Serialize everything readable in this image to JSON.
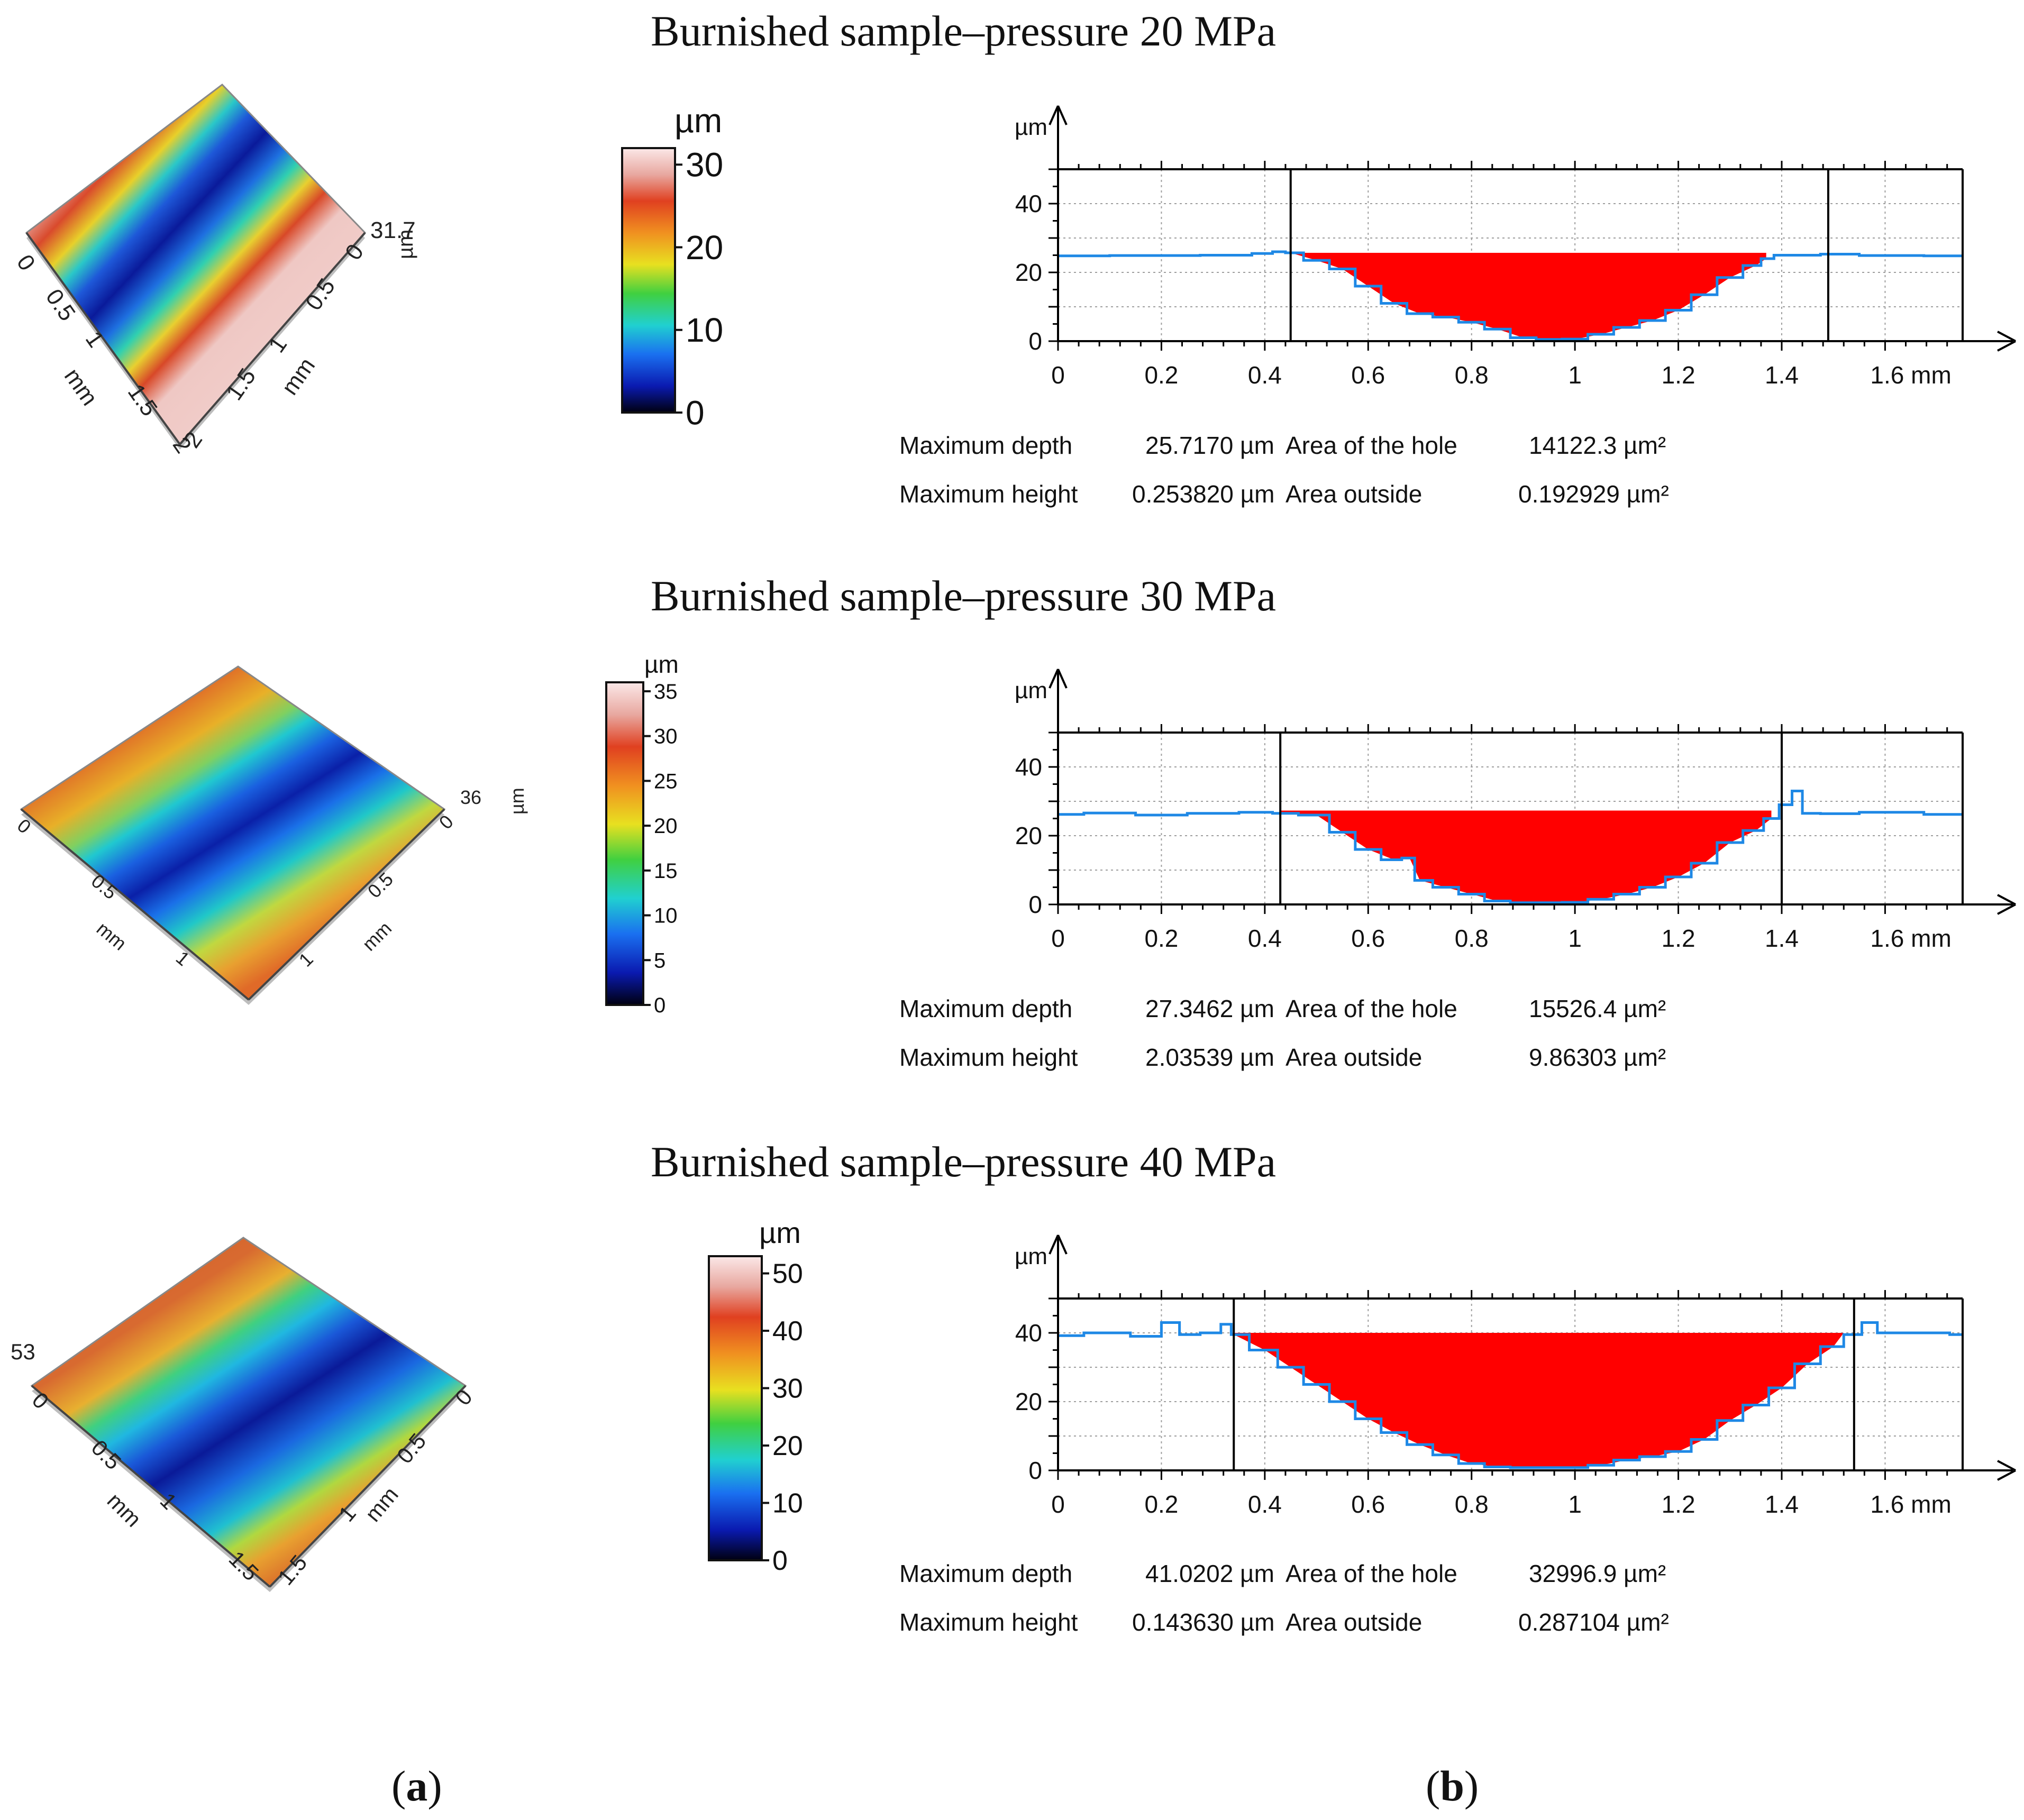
{
  "rows": [
    {
      "title": "Burnished sample–pressure 20 MPa",
      "surface": {
        "height_label": "31.7",
        "height_unit": "µm",
        "axis_left_ticks": [
          "0",
          "0.5",
          "1",
          "1.5",
          "2"
        ],
        "axis_right_ticks": [
          "0",
          "0.5",
          "1",
          "1.5",
          "2"
        ],
        "axis_unit": "mm"
      },
      "colorbar": {
        "unit": "µm",
        "ticks": [
          "0",
          "10",
          "20",
          "30"
        ],
        "max": 32
      },
      "chart_data": {
        "type": "area",
        "title": "Burnished sample–pressure 20 MPa",
        "xlabel": "mm",
        "ylabel": "µm",
        "xlim": [
          0,
          1.75
        ],
        "ylim": [
          0,
          50
        ],
        "x_ticks": [
          "0",
          "0.2",
          "0.4",
          "0.6",
          "0.8",
          "1",
          "1.2",
          "1.4",
          "1.6 mm"
        ],
        "y_ticks": [
          "0",
          "20",
          "40"
        ],
        "grid": true,
        "cursors_x": [
          0.45,
          1.49
        ],
        "hole_level": 25.7,
        "hole_range": [
          0.45,
          1.37
        ],
        "x": [
          0,
          0.2,
          0.35,
          0.4,
          0.43,
          0.45,
          0.5,
          0.55,
          0.6,
          0.65,
          0.7,
          0.75,
          0.8,
          0.85,
          0.9,
          0.95,
          1.0,
          1.05,
          1.1,
          1.15,
          1.2,
          1.25,
          1.3,
          1.35,
          1.37,
          1.4,
          1.45,
          1.5,
          1.6,
          1.75
        ],
        "y": [
          24.8,
          24.9,
          25.0,
          25.5,
          26.0,
          25.7,
          23.5,
          21.0,
          16.0,
          11.0,
          8.0,
          7.0,
          5.5,
          3.5,
          1.0,
          0.5,
          0.6,
          2.0,
          4.0,
          6.0,
          9.0,
          13.5,
          18.5,
          22.0,
          24.0,
          25.0,
          25.0,
          25.3,
          24.9,
          24.8
        ]
      },
      "stats": {
        "max_depth_label": "Maximum depth",
        "max_depth_value": "25.7170 µm",
        "max_height_label": "Maximum height",
        "max_height_value": "0.253820 µm",
        "area_hole_label": "Area of the hole",
        "area_hole_value": "14122.3 µm²",
        "area_outside_label": "Area outside",
        "area_outside_value": "0.192929 µm²"
      }
    },
    {
      "title": "Burnished sample–pressure 30 MPa",
      "surface": {
        "height_label": "36",
        "height_unit": "µm",
        "axis_left_ticks": [
          "0",
          "0.5",
          "1"
        ],
        "axis_right_ticks": [
          "0",
          "0.5",
          "1"
        ],
        "axis_unit": "mm"
      },
      "colorbar": {
        "unit": "µm",
        "ticks": [
          "0",
          "5",
          "10",
          "15",
          "20",
          "25",
          "30",
          "35"
        ],
        "max": 36
      },
      "chart_data": {
        "type": "area",
        "title": "Burnished sample–pressure 30 MPa",
        "xlabel": "mm",
        "ylabel": "µm",
        "xlim": [
          0,
          1.75
        ],
        "ylim": [
          0,
          50
        ],
        "x_ticks": [
          "0",
          "0.2",
          "0.4",
          "0.6",
          "0.8",
          "1",
          "1.2",
          "1.4",
          "1.6 mm"
        ],
        "y_ticks": [
          "0",
          "20",
          "40"
        ],
        "grid": true,
        "cursors_x": [
          0.43,
          1.4
        ],
        "hole_level": 27.3,
        "hole_range": [
          0.43,
          1.38
        ],
        "x": [
          0,
          0.1,
          0.2,
          0.3,
          0.4,
          0.43,
          0.5,
          0.55,
          0.6,
          0.65,
          0.68,
          0.7,
          0.75,
          0.8,
          0.85,
          0.9,
          0.95,
          1.0,
          1.05,
          1.1,
          1.15,
          1.2,
          1.25,
          1.3,
          1.35,
          1.38,
          1.41,
          1.43,
          1.45,
          1.5,
          1.6,
          1.75
        ],
        "y": [
          26.2,
          26.6,
          26.0,
          26.5,
          26.8,
          26.5,
          26.0,
          21.0,
          16.0,
          13.0,
          13.5,
          7.0,
          5.0,
          3.0,
          1.0,
          0.5,
          0.5,
          0.6,
          1.5,
          3.0,
          5.0,
          8.0,
          12.0,
          18.0,
          21.5,
          25.0,
          29.0,
          33.0,
          26.5,
          26.4,
          26.8,
          26.2
        ]
      },
      "stats": {
        "max_depth_label": "Maximum depth",
        "max_depth_value": "27.3462 µm",
        "max_height_label": "Maximum height",
        "max_height_value": "2.03539 µm",
        "area_hole_label": "Area of the hole",
        "area_hole_value": "15526.4 µm²",
        "area_outside_label": "Area outside",
        "area_outside_value": "9.86303 µm²"
      }
    },
    {
      "title": "Burnished sample–pressure 40 MPa",
      "surface": {
        "height_label": "53",
        "height_unit": "µm",
        "axis_left_ticks": [
          "0",
          "0.5",
          "1",
          "1.5"
        ],
        "axis_right_ticks": [
          "0",
          "0.5",
          "1",
          "1.5"
        ],
        "axis_unit": "mm"
      },
      "colorbar": {
        "unit": "µm",
        "ticks": [
          "0",
          "10",
          "20",
          "30",
          "40",
          "50"
        ],
        "max": 53
      },
      "chart_data": {
        "type": "area",
        "title": "Burnished sample–pressure 40 MPa",
        "xlabel": "mm",
        "ylabel": "µm",
        "xlim": [
          0,
          1.75
        ],
        "ylim": [
          0,
          50
        ],
        "x_ticks": [
          "0",
          "0.2",
          "0.4",
          "0.6",
          "0.8",
          "1",
          "1.2",
          "1.4",
          "1.6 mm"
        ],
        "y_ticks": [
          "0",
          "20",
          "40"
        ],
        "grid": true,
        "cursors_x": [
          0.34,
          1.54
        ],
        "hole_level": 40.0,
        "hole_range": [
          0.34,
          1.52
        ],
        "x": [
          0,
          0.1,
          0.18,
          0.22,
          0.25,
          0.3,
          0.33,
          0.34,
          0.4,
          0.45,
          0.5,
          0.55,
          0.6,
          0.65,
          0.7,
          0.75,
          0.8,
          0.85,
          0.9,
          0.95,
          1.0,
          1.05,
          1.1,
          1.15,
          1.2,
          1.25,
          1.3,
          1.35,
          1.4,
          1.45,
          1.5,
          1.54,
          1.57,
          1.6,
          1.7,
          1.75
        ],
        "y": [
          39.2,
          40.0,
          39.0,
          43.0,
          39.5,
          40.0,
          42.5,
          39.5,
          35.0,
          30.0,
          25.0,
          20.0,
          15.0,
          11.0,
          7.5,
          4.5,
          2.0,
          1.0,
          0.8,
          0.8,
          0.8,
          1.5,
          3.0,
          4.0,
          5.5,
          9.0,
          14.5,
          19.0,
          24.0,
          31.0,
          36.0,
          39.5,
          43.0,
          40.0,
          40.0,
          39.5
        ]
      },
      "stats": {
        "max_depth_label": "Maximum depth",
        "max_depth_value": "41.0202 µm",
        "max_height_label": "Maximum height",
        "max_height_value": "0.143630 µm",
        "area_hole_label": "Area of the hole",
        "area_hole_value": "32996.9 µm²",
        "area_outside_label": "Area outside",
        "area_outside_value": "0.287104 µm²"
      }
    }
  ],
  "panel_labels": {
    "a_open": "(",
    "a": "a",
    "a_close": ")",
    "b_open": "(",
    "b": "b",
    "b_close": ")"
  },
  "colors": {
    "hole_fill": "#ff0000",
    "profile_line": "#1e88e5",
    "grid": "#9e9e9e",
    "axis": "#000000"
  }
}
